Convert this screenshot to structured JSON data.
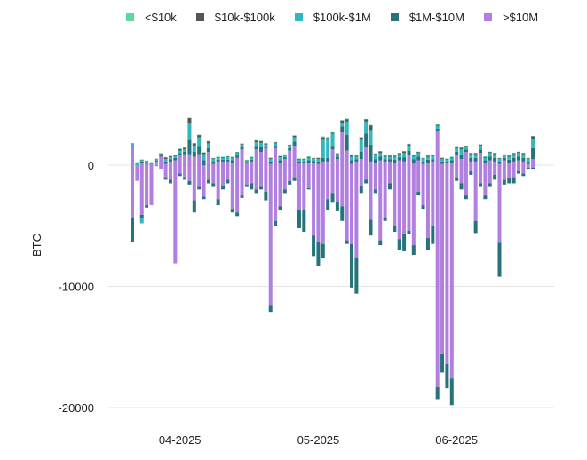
{
  "chart_data": {
    "type": "bar",
    "stacked": true,
    "title": "",
    "ylabel": "BTC",
    "xlabel": "",
    "ylim": [
      -21000,
      6500
    ],
    "yticks": [
      0,
      -10000,
      -20000
    ],
    "xtick_labels": [
      "04-2025",
      "05-2025",
      "06-2025"
    ],
    "xtick_positions": [
      10,
      39,
      68
    ],
    "num_days": 85,
    "legend_position": "top",
    "series": [
      {
        "name": "<$10k",
        "color": "#5fd99a"
      },
      {
        "name": "$10k-$100k",
        "color": "#555555"
      },
      {
        "name": "$100k-$1M",
        "color": "#2fb8bf"
      },
      {
        "name": "$1M-$10M",
        "color": "#26747a"
      },
      {
        "name": ">$10M",
        "color": "#b07fe0"
      }
    ],
    "positive": [
      [
        20,
        20,
        150,
        30,
        1600
      ],
      [
        20,
        80,
        150,
        0,
        0
      ],
      [
        20,
        50,
        100,
        100,
        200
      ],
      [
        20,
        50,
        100,
        100,
        100
      ],
      [
        20,
        50,
        80,
        50,
        50
      ],
      [
        20,
        50,
        80,
        100,
        300
      ],
      [
        20,
        80,
        100,
        100,
        700
      ],
      [
        20,
        150,
        200,
        200,
        100
      ],
      [
        20,
        100,
        150,
        200,
        300
      ],
      [
        20,
        100,
        150,
        200,
        400
      ],
      [
        20,
        150,
        200,
        200,
        800
      ],
      [
        20,
        150,
        200,
        200,
        900
      ],
      [
        20,
        400,
        1400,
        1200,
        900
      ],
      [
        30,
        200,
        500,
        400,
        700
      ],
      [
        20,
        200,
        700,
        700,
        900
      ],
      [
        20,
        150,
        500,
        400,
        0
      ],
      [
        20,
        180,
        400,
        300,
        1100
      ],
      [
        20,
        80,
        200,
        200,
        100
      ],
      [
        20,
        80,
        150,
        150,
        300
      ],
      [
        20,
        80,
        150,
        150,
        300
      ],
      [
        20,
        80,
        200,
        150,
        300
      ],
      [
        20,
        80,
        200,
        200,
        200
      ],
      [
        20,
        80,
        200,
        200,
        600
      ],
      [
        20,
        80,
        200,
        200,
        1300
      ],
      [
        20,
        50,
        100,
        80,
        200
      ],
      [
        20,
        80,
        150,
        150,
        300
      ],
      [
        20,
        150,
        300,
        300,
        1300
      ],
      [
        20,
        150,
        350,
        400,
        1100
      ],
      [
        20,
        100,
        150,
        150,
        1400
      ],
      [
        20,
        100,
        200,
        200,
        100
      ],
      [
        20,
        100,
        200,
        200,
        1400
      ],
      [
        20,
        100,
        250,
        200,
        200
      ],
      [
        20,
        80,
        150,
        150,
        500
      ],
      [
        20,
        80,
        200,
        200,
        1200
      ],
      [
        20,
        150,
        350,
        350,
        1600
      ],
      [
        20,
        80,
        150,
        100,
        200
      ],
      [
        20,
        80,
        150,
        100,
        200
      ],
      [
        20,
        100,
        200,
        200,
        200
      ],
      [
        20,
        80,
        150,
        150,
        200
      ],
      [
        20,
        100,
        200,
        200,
        100
      ],
      [
        80,
        200,
        1500,
        300,
        300
      ],
      [
        80,
        150,
        1500,
        300,
        300
      ],
      [
        20,
        100,
        1000,
        300,
        1300
      ],
      [
        20,
        80,
        200,
        200,
        500
      ],
      [
        20,
        200,
        300,
        500,
        2700
      ],
      [
        50,
        200,
        1100,
        1300,
        1200
      ],
      [
        20,
        150,
        300,
        300,
        100
      ],
      [
        20,
        100,
        200,
        200,
        300
      ],
      [
        20,
        200,
        1000,
        600,
        500
      ],
      [
        20,
        200,
        1000,
        1100,
        1500
      ],
      [
        20,
        400,
        1200,
        1400,
        300
      ],
      [
        20,
        150,
        300,
        300,
        200
      ],
      [
        20,
        150,
        300,
        300,
        400
      ],
      [
        20,
        100,
        200,
        200,
        300
      ],
      [
        20,
        100,
        200,
        200,
        300
      ],
      [
        20,
        100,
        250,
        250,
        200
      ],
      [
        20,
        100,
        250,
        250,
        400
      ],
      [
        20,
        150,
        350,
        350,
        300
      ],
      [
        20,
        150,
        400,
        400,
        800
      ],
      [
        20,
        100,
        250,
        300,
        200
      ],
      [
        20,
        100,
        300,
        300,
        400
      ],
      [
        20,
        80,
        200,
        200,
        100
      ],
      [
        20,
        100,
        250,
        250,
        200
      ],
      [
        20,
        100,
        250,
        200,
        300
      ],
      [
        20,
        100,
        250,
        200,
        2800
      ],
      [
        20,
        100,
        200,
        200,
        100
      ],
      [
        20,
        80,
        150,
        100,
        200
      ],
      [
        20,
        80,
        200,
        200,
        200
      ],
      [
        20,
        150,
        300,
        300,
        800
      ],
      [
        20,
        150,
        400,
        400,
        500
      ],
      [
        20,
        100,
        200,
        200,
        1100
      ],
      [
        20,
        100,
        300,
        300,
        300
      ],
      [
        20,
        100,
        300,
        300,
        300
      ],
      [
        20,
        100,
        300,
        300,
        1000
      ],
      [
        20,
        100,
        200,
        200,
        200
      ],
      [
        20,
        100,
        300,
        300,
        400
      ],
      [
        20,
        100,
        300,
        300,
        300
      ],
      [
        20,
        80,
        200,
        200,
        100
      ],
      [
        20,
        80,
        200,
        200,
        400
      ],
      [
        20,
        100,
        250,
        250,
        200
      ],
      [
        20,
        100,
        300,
        300,
        300
      ],
      [
        20,
        100,
        300,
        300,
        400
      ],
      [
        20,
        100,
        300,
        300,
        300
      ],
      [
        20,
        80,
        200,
        200,
        100
      ],
      [
        20,
        200,
        800,
        900,
        500
      ]
    ],
    "negative": [
      [
        0,
        0,
        0,
        2000,
        4300
      ],
      [
        0,
        0,
        0,
        0,
        1300
      ],
      [
        0,
        0,
        400,
        300,
        4100
      ],
      [
        0,
        0,
        0,
        200,
        3300
      ],
      [
        0,
        0,
        0,
        0,
        3300
      ],
      [
        0,
        0,
        0,
        0,
        100
      ],
      [
        0,
        0,
        0,
        0,
        300
      ],
      [
        0,
        0,
        0,
        200,
        1000
      ],
      [
        0,
        0,
        0,
        300,
        1200
      ],
      [
        0,
        0,
        0,
        0,
        8100
      ],
      [
        0,
        0,
        0,
        200,
        700
      ],
      [
        0,
        0,
        0,
        200,
        1000
      ],
      [
        0,
        0,
        0,
        300,
        1300
      ],
      [
        0,
        0,
        0,
        1000,
        2900
      ],
      [
        0,
        0,
        0,
        200,
        1800
      ],
      [
        0,
        0,
        0,
        200,
        2600
      ],
      [
        0,
        0,
        0,
        300,
        1200
      ],
      [
        0,
        0,
        0,
        300,
        1500
      ],
      [
        0,
        0,
        0,
        500,
        2800
      ],
      [
        0,
        0,
        0,
        300,
        1700
      ],
      [
        0,
        0,
        0,
        300,
        1200
      ],
      [
        0,
        0,
        0,
        300,
        3600
      ],
      [
        0,
        0,
        0,
        300,
        3900
      ],
      [
        0,
        0,
        0,
        200,
        2500
      ],
      [
        0,
        0,
        0,
        200,
        1600
      ],
      [
        0,
        0,
        0,
        500,
        1500
      ],
      [
        0,
        0,
        0,
        300,
        2000
      ],
      [
        0,
        0,
        0,
        200,
        1800
      ],
      [
        0,
        0,
        0,
        700,
        2200
      ],
      [
        0,
        0,
        0,
        500,
        11600
      ],
      [
        0,
        0,
        0,
        400,
        4600
      ],
      [
        0,
        0,
        0,
        300,
        3400
      ],
      [
        0,
        0,
        0,
        300,
        2000
      ],
      [
        0,
        0,
        0,
        300,
        1300
      ],
      [
        0,
        0,
        0,
        300,
        1000
      ],
      [
        0,
        0,
        0,
        1500,
        3700
      ],
      [
        0,
        0,
        0,
        1800,
        3700
      ],
      [
        0,
        0,
        0,
        100,
        1900
      ],
      [
        0,
        0,
        0,
        1700,
        5800
      ],
      [
        0,
        0,
        0,
        2000,
        6300
      ],
      [
        0,
        0,
        0,
        1200,
        6500
      ],
      [
        0,
        0,
        0,
        900,
        2800
      ],
      [
        0,
        0,
        0,
        800,
        2300
      ],
      [
        0,
        0,
        0,
        800,
        3000
      ],
      [
        0,
        0,
        0,
        1200,
        3400
      ],
      [
        0,
        0,
        0,
        300,
        6200
      ],
      [
        0,
        0,
        0,
        3600,
        6500
      ],
      [
        0,
        0,
        0,
        3000,
        7600
      ],
      [
        0,
        0,
        0,
        600,
        1700
      ],
      [
        0,
        0,
        0,
        300,
        1200
      ],
      [
        0,
        0,
        0,
        1300,
        4500
      ],
      [
        0,
        0,
        0,
        300,
        2000
      ],
      [
        0,
        0,
        0,
        400,
        6200
      ],
      [
        0,
        0,
        0,
        300,
        4300
      ],
      [
        0,
        0,
        0,
        500,
        1500
      ],
      [
        0,
        0,
        0,
        500,
        5000
      ],
      [
        0,
        0,
        0,
        900,
        6100
      ],
      [
        0,
        0,
        0,
        1400,
        5700
      ],
      [
        0,
        0,
        0,
        300,
        5400
      ],
      [
        0,
        0,
        0,
        800,
        6600
      ],
      [
        0,
        0,
        0,
        300,
        2200
      ],
      [
        0,
        0,
        0,
        300,
        3300
      ],
      [
        0,
        0,
        0,
        1000,
        6000
      ],
      [
        0,
        0,
        0,
        1500,
        5000
      ],
      [
        0,
        0,
        0,
        1000,
        18300
      ],
      [
        0,
        0,
        0,
        1500,
        15600
      ],
      [
        0,
        0,
        0,
        2000,
        16400
      ],
      [
        0,
        0,
        0,
        2200,
        17600
      ],
      [
        0,
        0,
        0,
        300,
        1000
      ],
      [
        0,
        0,
        0,
        500,
        1500
      ],
      [
        0,
        0,
        0,
        300,
        2500
      ],
      [
        0,
        0,
        0,
        300,
        500
      ],
      [
        0,
        0,
        0,
        1000,
        4600
      ],
      [
        0,
        0,
        0,
        300,
        1500
      ],
      [
        0,
        0,
        0,
        300,
        2500
      ],
      [
        0,
        0,
        0,
        300,
        1500
      ],
      [
        0,
        0,
        0,
        400,
        800
      ],
      [
        0,
        0,
        0,
        2800,
        6400
      ],
      [
        0,
        0,
        0,
        400,
        1200
      ],
      [
        0,
        0,
        0,
        400,
        1100
      ],
      [
        0,
        0,
        0,
        500,
        1000
      ],
      [
        0,
        0,
        0,
        200,
        500
      ],
      [
        0,
        0,
        0,
        200,
        700
      ],
      [
        0,
        0,
        0,
        100,
        200
      ],
      [
        0,
        0,
        0,
        100,
        200
      ]
    ]
  }
}
